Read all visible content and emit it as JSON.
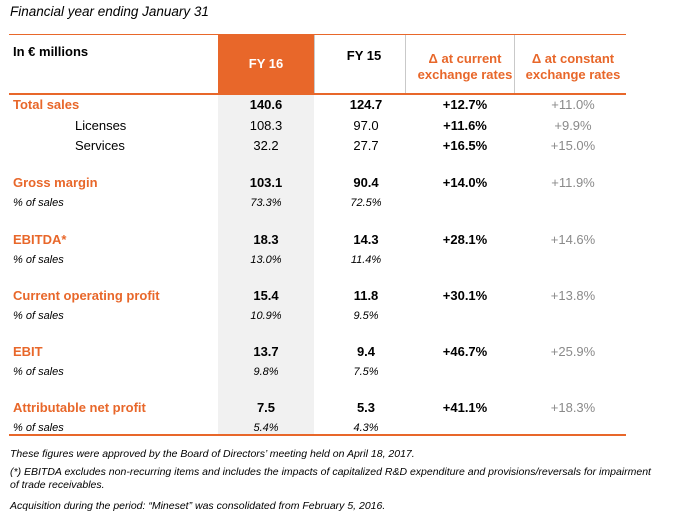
{
  "caption": "Financial year ending January 31",
  "headers": {
    "label": "In € millions",
    "fy16": "FY 16",
    "fy15": "FY 15",
    "current_line1": "Δ at current",
    "current_line2": "exchange rates",
    "constant_line1": "Δ at constant",
    "constant_line2": "exchange rates"
  },
  "colors": {
    "accent": "#e8672a",
    "highlight_col": "#f1f1f1",
    "muted": "#8a8a8a"
  },
  "rows": [
    {
      "kind": "main",
      "label": "Total sales",
      "fy16": "140.6",
      "fy15": "124.7",
      "current": "+12.7%",
      "constant": "+11.0%"
    },
    {
      "kind": "sub",
      "label": "Licenses",
      "fy16": "108.3",
      "fy15": "97.0",
      "current": "+11.6%",
      "constant": "+9.9%"
    },
    {
      "kind": "sub",
      "label": "Services",
      "fy16": "32.2",
      "fy15": "27.7",
      "current": "+16.5%",
      "constant": "+15.0%"
    },
    {
      "kind": "main",
      "label": "Gross margin",
      "fy16": "103.1",
      "fy15": "90.4",
      "current": "+14.0%",
      "constant": "+11.9%"
    },
    {
      "kind": "pct",
      "label": "% of sales",
      "fy16": "73.3%",
      "fy15": "72.5%",
      "current": "",
      "constant": ""
    },
    {
      "kind": "main",
      "label": "EBITDA*",
      "fy16": "18.3",
      "fy15": "14.3",
      "current": "+28.1%",
      "constant": "+14.6%"
    },
    {
      "kind": "pct",
      "label": "% of sales",
      "fy16": "13.0%",
      "fy15": "11.4%",
      "current": "",
      "constant": ""
    },
    {
      "kind": "main",
      "label": "Current operating profit",
      "fy16": "15.4",
      "fy15": "11.8",
      "current": "+30.1%",
      "constant": "+13.8%"
    },
    {
      "kind": "pct",
      "label": "% of sales",
      "fy16": "10.9%",
      "fy15": "9.5%",
      "current": "",
      "constant": ""
    },
    {
      "kind": "main",
      "label": "EBIT",
      "fy16": "13.7",
      "fy15": "9.4",
      "current": "+46.7%",
      "constant": "+25.9%"
    },
    {
      "kind": "pct",
      "label": "% of sales",
      "fy16": "9.8%",
      "fy15": "7.5%",
      "current": "",
      "constant": ""
    },
    {
      "kind": "main",
      "label": "Attributable net profit",
      "fy16": "7.5",
      "fy15": "5.3",
      "current": "+41.1%",
      "constant": "+18.3%"
    },
    {
      "kind": "pct",
      "label": "% of sales",
      "fy16": "5.4%",
      "fy15": "4.3%",
      "current": "",
      "constant": ""
    }
  ],
  "notes": {
    "approval": "These figures were approved by the Board of Directors’ meeting held on April 18, 2017.",
    "ebitda": "(*) EBITDA excludes non-recurring items and includes the impacts of capitalized R&D expenditure and provisions/reversals for impairment of trade receivables.",
    "acquisition": "Acquisition during the period: “Mineset” was consolidated from February 5, 2016."
  }
}
